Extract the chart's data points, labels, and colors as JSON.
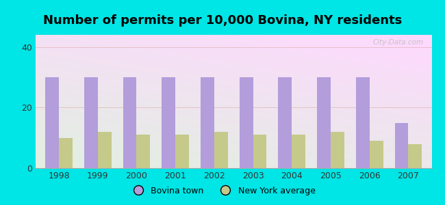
{
  "title": "Number of permits per 10,000 Bovina, NY residents",
  "years": [
    1998,
    1999,
    2000,
    2001,
    2002,
    2003,
    2004,
    2005,
    2006,
    2007
  ],
  "bovina_values": [
    30,
    30,
    30,
    30,
    30,
    30,
    30,
    30,
    30,
    15
  ],
  "ny_values": [
    10,
    12,
    11,
    11,
    12,
    11,
    11,
    12,
    9,
    8
  ],
  "bovina_color": "#b39ddb",
  "ny_color": "#c5c98a",
  "background_color": "#00e5e5",
  "ylim": [
    0,
    44
  ],
  "yticks": [
    0,
    20,
    40
  ],
  "bar_width": 0.35,
  "legend_bovina": "Bovina town",
  "legend_ny": "New York average",
  "title_fontsize": 13,
  "watermark": "City-Data.com"
}
